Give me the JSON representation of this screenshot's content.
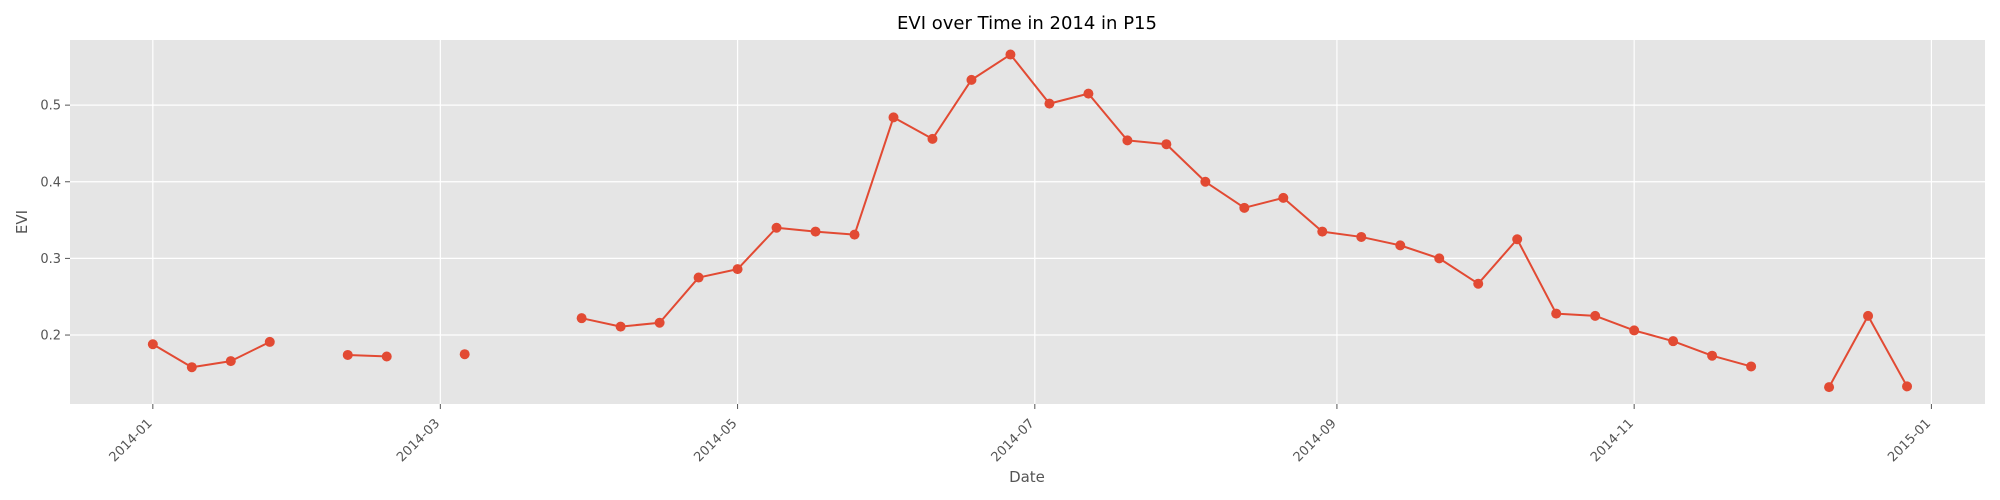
{
  "chart_data": {
    "type": "line",
    "title": "EVI over Time in 2014 in P15",
    "xlabel": "Date",
    "ylabel": "EVI",
    "x_ticks": [
      "2014-01",
      "2014-03",
      "2014-05",
      "2014-07",
      "2014-09",
      "2014-11",
      "2015-01"
    ],
    "y_ticks": [
      "0.2",
      "0.3",
      "0.4",
      "0.5"
    ],
    "ylim": [
      0.11,
      0.585
    ],
    "xlim": [
      "2013-12-15",
      "2015-01-12"
    ],
    "grid": true,
    "colors": {
      "series": "#E24A33",
      "plot_background": "#E5E5E5",
      "grid": "#FFFFFF"
    },
    "series": [
      {
        "segments": [
          [
            [
              "2014-01-01",
              0.188
            ],
            [
              "2014-01-09",
              0.158
            ],
            [
              "2014-01-17",
              0.166
            ],
            [
              "2014-01-25",
              0.191
            ]
          ],
          [
            [
              "2014-02-10",
              0.174
            ],
            [
              "2014-02-18",
              0.172
            ]
          ],
          [
            [
              "2014-03-06",
              0.175
            ]
          ],
          [
            [
              "2014-03-30",
              0.222
            ],
            [
              "2014-04-07",
              0.211
            ],
            [
              "2014-04-15",
              0.216
            ],
            [
              "2014-04-23",
              0.275
            ],
            [
              "2014-05-01",
              0.286
            ],
            [
              "2014-05-09",
              0.34
            ],
            [
              "2014-05-17",
              0.335
            ],
            [
              "2014-05-25",
              0.331
            ],
            [
              "2014-06-02",
              0.484
            ],
            [
              "2014-06-10",
              0.456
            ],
            [
              "2014-06-18",
              0.533
            ],
            [
              "2014-06-26",
              0.566
            ],
            [
              "2014-07-04",
              0.502
            ],
            [
              "2014-07-12",
              0.515
            ],
            [
              "2014-07-20",
              0.454
            ],
            [
              "2014-07-28",
              0.449
            ],
            [
              "2014-08-05",
              0.4
            ],
            [
              "2014-08-13",
              0.366
            ],
            [
              "2014-08-21",
              0.379
            ],
            [
              "2014-08-29",
              0.335
            ],
            [
              "2014-09-06",
              0.328
            ],
            [
              "2014-09-14",
              0.317
            ],
            [
              "2014-09-22",
              0.3
            ],
            [
              "2014-09-30",
              0.267
            ],
            [
              "2014-10-08",
              0.325
            ],
            [
              "2014-10-16",
              0.228
            ],
            [
              "2014-10-24",
              0.225
            ],
            [
              "2014-11-01",
              0.206
            ],
            [
              "2014-11-09",
              0.192
            ],
            [
              "2014-11-17",
              0.173
            ],
            [
              "2014-11-25",
              0.159
            ]
          ],
          [
            [
              "2014-12-11",
              0.132
            ],
            [
              "2014-12-19",
              0.225
            ],
            [
              "2014-12-27",
              0.133
            ]
          ]
        ]
      }
    ]
  }
}
